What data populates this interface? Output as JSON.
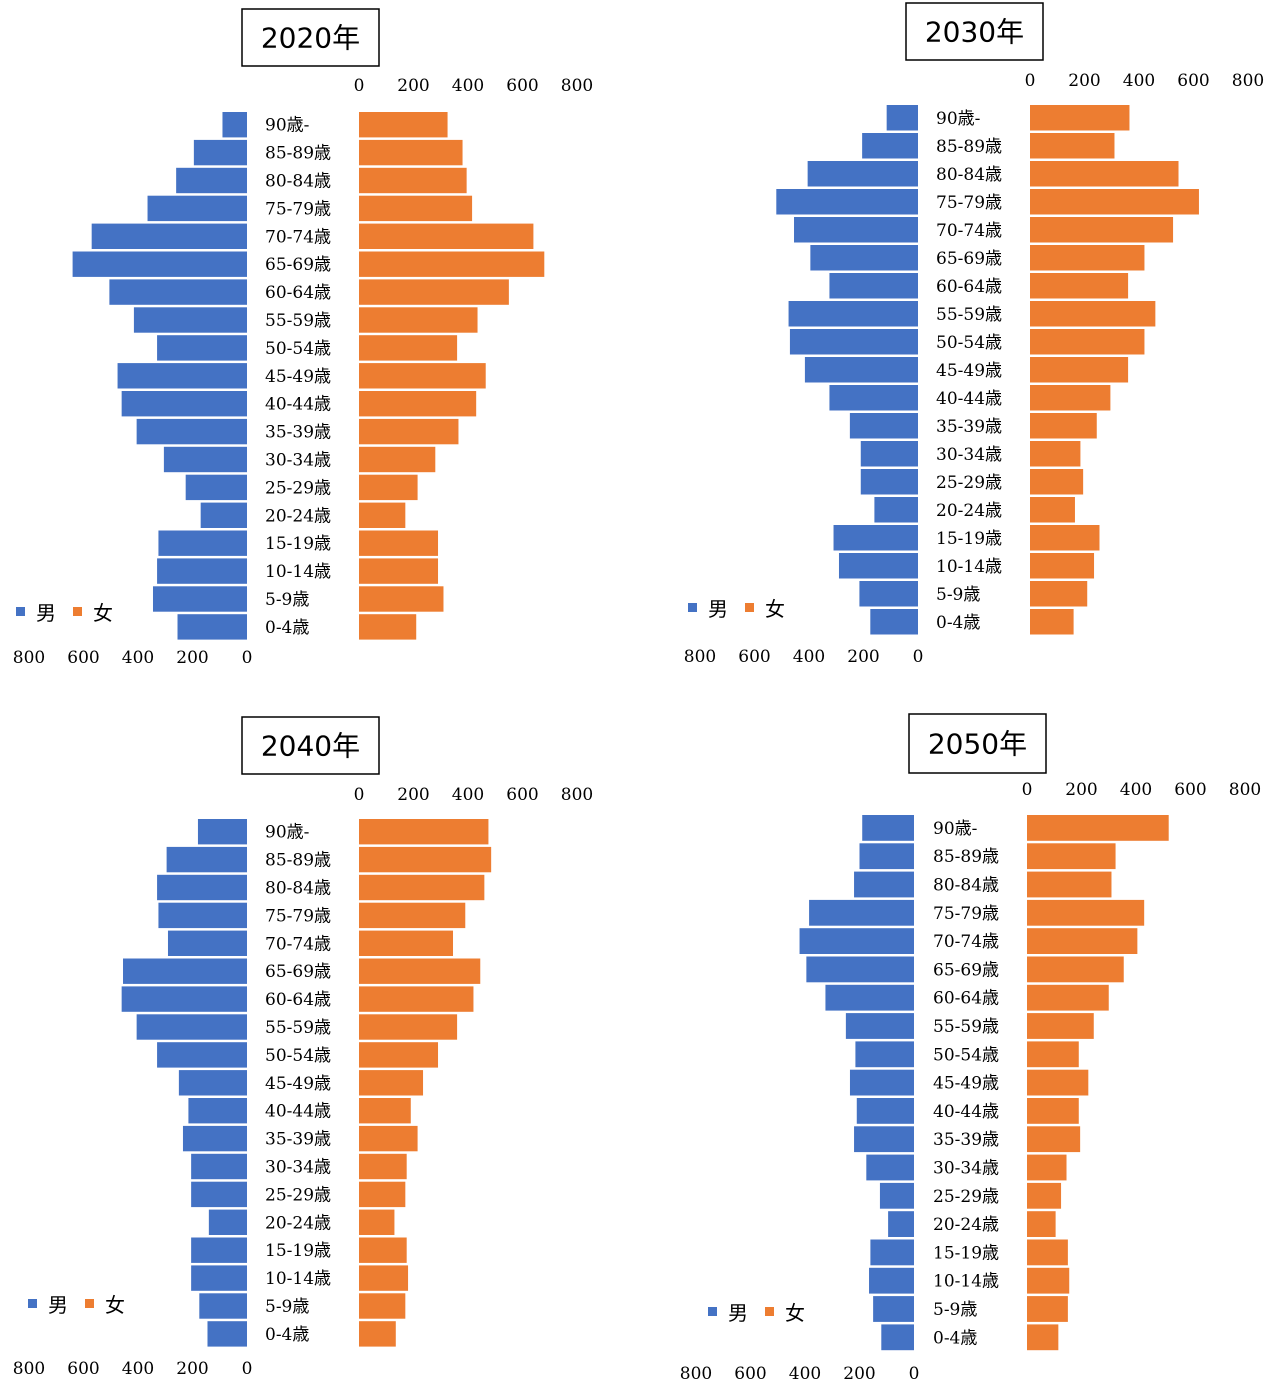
{
  "chart_data": [
    {
      "type": "bar",
      "title": "2020年",
      "categories": [
        "90歳-",
        "85-89歳",
        "80-84歳",
        "75-79歳",
        "70-74歳",
        "65-69歳",
        "60-64歳",
        "55-59歳",
        "50-54歳",
        "45-49歳",
        "40-44歳",
        "35-39歳",
        "30-34歳",
        "25-29歳",
        "20-24歳",
        "15-19歳",
        "10-14歳",
        "5-9歳",
        "0-4歳"
      ],
      "series": [
        {
          "name": "男",
          "values": [
            90,
            195,
            260,
            365,
            570,
            640,
            505,
            415,
            330,
            475,
            460,
            405,
            305,
            225,
            170,
            325,
            330,
            345,
            255
          ]
        },
        {
          "name": "女",
          "values": [
            325,
            380,
            395,
            415,
            640,
            680,
            550,
            435,
            360,
            465,
            430,
            365,
            280,
            215,
            170,
            290,
            290,
            310,
            210
          ]
        }
      ],
      "xlim": [
        0,
        800
      ],
      "ticks": [
        "0",
        "200",
        "400",
        "600",
        "800"
      ],
      "legend_position": "left"
    },
    {
      "type": "bar",
      "title": "2030年",
      "categories": [
        "90歳-",
        "85-89歳",
        "80-84歳",
        "75-79歳",
        "70-74歳",
        "65-69歳",
        "60-64歳",
        "55-59歳",
        "50-54歳",
        "45-49歳",
        "40-44歳",
        "35-39歳",
        "30-34歳",
        "25-29歳",
        "20-24歳",
        "15-19歳",
        "10-14歳",
        "5-9歳",
        "0-4歳"
      ],
      "series": [
        {
          "name": "男",
          "values": [
            115,
            205,
            405,
            520,
            455,
            395,
            325,
            475,
            470,
            415,
            325,
            250,
            210,
            210,
            160,
            310,
            290,
            215,
            175
          ]
        },
        {
          "name": "女",
          "values": [
            365,
            310,
            545,
            620,
            525,
            420,
            360,
            460,
            420,
            360,
            295,
            245,
            185,
            195,
            165,
            255,
            235,
            210,
            160
          ]
        }
      ],
      "xlim": [
        0,
        800
      ],
      "ticks": [
        "0",
        "200",
        "400",
        "600",
        "800"
      ],
      "legend_position": "left"
    },
    {
      "type": "bar",
      "title": "2040年",
      "categories": [
        "90歳-",
        "85-89歳",
        "80-84歳",
        "75-79歳",
        "70-74歳",
        "65-69歳",
        "60-64歳",
        "55-59歳",
        "50-54歳",
        "45-49歳",
        "40-44歳",
        "35-39歳",
        "30-34歳",
        "25-29歳",
        "20-24歳",
        "15-19歳",
        "10-14歳",
        "5-9歳",
        "0-4歳"
      ],
      "series": [
        {
          "name": "男",
          "values": [
            180,
            295,
            330,
            325,
            290,
            455,
            460,
            405,
            330,
            250,
            215,
            235,
            205,
            205,
            140,
            205,
            205,
            175,
            145
          ]
        },
        {
          "name": "女",
          "values": [
            475,
            485,
            460,
            390,
            345,
            445,
            420,
            360,
            290,
            235,
            190,
            215,
            175,
            170,
            130,
            175,
            180,
            170,
            135
          ]
        }
      ],
      "xlim": [
        0,
        800
      ],
      "ticks": [
        "0",
        "200",
        "400",
        "600",
        "800"
      ],
      "legend_position": "left"
    },
    {
      "type": "bar",
      "title": "2050年",
      "categories": [
        "90歳-",
        "85-89歳",
        "80-84歳",
        "75-79歳",
        "70-74歳",
        "65-69歳",
        "60-64歳",
        "55-59歳",
        "50-54歳",
        "45-49歳",
        "40-44歳",
        "35-39歳",
        "30-34歳",
        "25-29歳",
        "20-24歳",
        "15-19歳",
        "10-14歳",
        "5-9歳",
        "0-4歳"
      ],
      "series": [
        {
          "name": "男",
          "values": [
            190,
            200,
            220,
            385,
            420,
            395,
            325,
            250,
            215,
            235,
            210,
            220,
            175,
            125,
            95,
            160,
            165,
            150,
            120
          ]
        },
        {
          "name": "女",
          "values": [
            520,
            325,
            310,
            430,
            405,
            355,
            300,
            245,
            190,
            225,
            190,
            195,
            145,
            125,
            105,
            150,
            155,
            150,
            115
          ]
        }
      ],
      "xlim": [
        0,
        800
      ],
      "ticks": [
        "0",
        "200",
        "400",
        "600",
        "800"
      ],
      "legend_position": "left"
    }
  ],
  "colors": {
    "male": "#4472c4",
    "female": "#ed7d31"
  }
}
